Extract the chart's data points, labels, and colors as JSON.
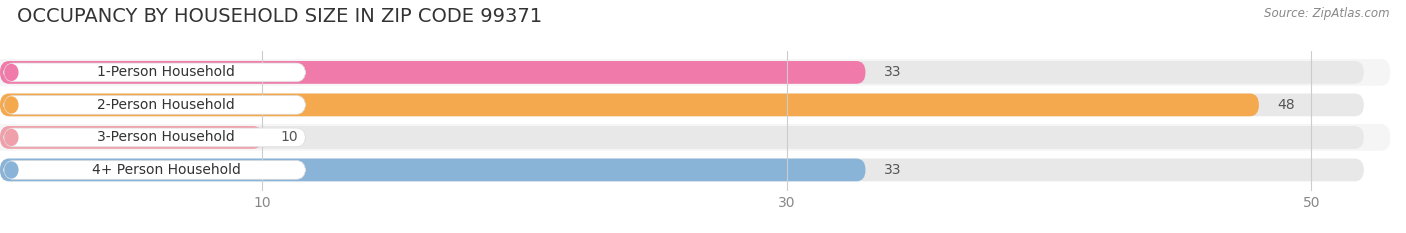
{
  "title": "OCCUPANCY BY HOUSEHOLD SIZE IN ZIP CODE 99371",
  "source": "Source: ZipAtlas.com",
  "categories": [
    "1-Person Household",
    "2-Person Household",
    "3-Person Household",
    "4+ Person Household"
  ],
  "values": [
    33,
    48,
    10,
    33
  ],
  "bar_colors": [
    "#f07aaa",
    "#f5a94e",
    "#f0a0aa",
    "#89b4d8"
  ],
  "label_bg_color": "#ffffff",
  "background_color": "#ffffff",
  "bar_bg_color": "#e8e8e8",
  "row_bg_colors": [
    "#f5f5f5",
    "#ffffff",
    "#f5f5f5",
    "#ffffff"
  ],
  "xlim": [
    0,
    52
  ],
  "xticks": [
    10,
    30,
    50
  ],
  "title_fontsize": 14,
  "label_fontsize": 10,
  "value_fontsize": 10
}
